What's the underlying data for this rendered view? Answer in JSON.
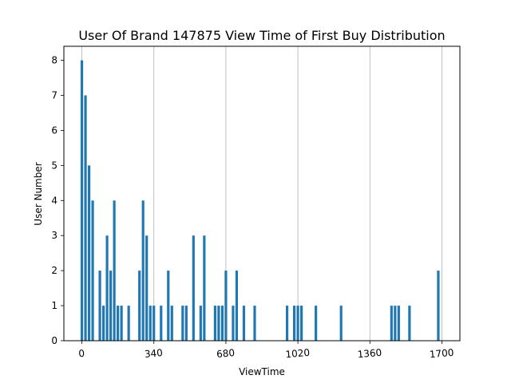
{
  "chart_data": {
    "type": "bar",
    "title": "User Of Brand 147875 View Time of First Buy Distribution",
    "xlabel": "ViewTime",
    "ylabel": "User Number",
    "xlim": [
      -85,
      1785
    ],
    "ylim": [
      0,
      8.4
    ],
    "xticks": [
      0,
      340,
      680,
      1020,
      1360,
      1700
    ],
    "yticks": [
      0,
      1,
      2,
      3,
      4,
      5,
      6,
      7,
      8
    ],
    "grid": "vertical",
    "bar_color": "#1f77b4",
    "bar_width": 12,
    "x": [
      0,
      17,
      34,
      51,
      85,
      102,
      119,
      136,
      153,
      170,
      187,
      221,
      272,
      289,
      306,
      323,
      340,
      374,
      408,
      425,
      476,
      493,
      527,
      561,
      578,
      629,
      646,
      663,
      680,
      714,
      731,
      765,
      816,
      969,
      1003,
      1020,
      1037,
      1105,
      1224,
      1462,
      1479,
      1496,
      1547,
      1683
    ],
    "values": [
      8,
      7,
      5,
      4,
      2,
      1,
      3,
      2,
      4,
      1,
      1,
      1,
      2,
      4,
      3,
      1,
      1,
      1,
      2,
      1,
      1,
      1,
      3,
      1,
      3,
      1,
      1,
      1,
      2,
      1,
      2,
      1,
      1,
      1,
      1,
      1,
      1,
      1,
      1,
      1,
      1,
      1,
      1,
      2
    ]
  }
}
